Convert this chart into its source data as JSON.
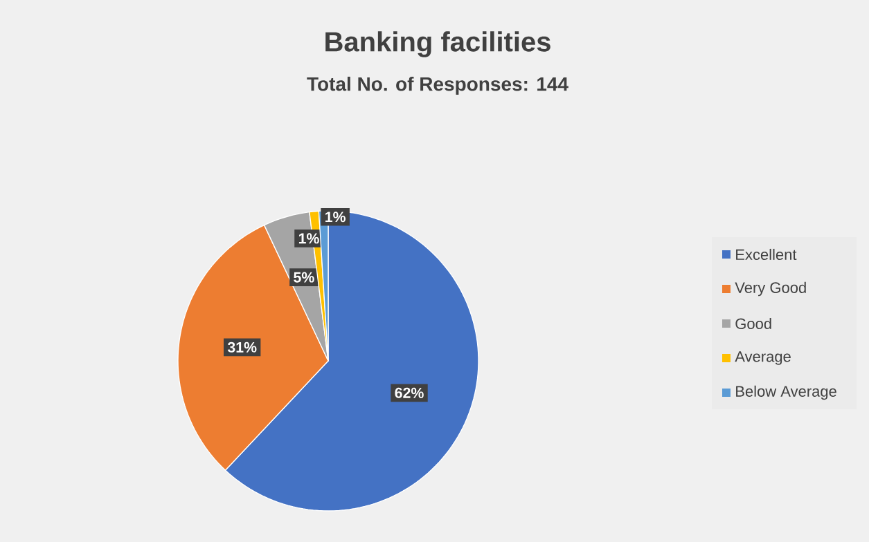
{
  "chart_data": {
    "type": "pie",
    "title": "Banking facilities",
    "subtitle": "Total No. of Responses: 144",
    "categories": [
      "Excellent",
      "Very Good",
      "Good",
      "Average",
      "Below Average"
    ],
    "values": [
      62,
      31,
      5,
      1,
      1
    ],
    "value_labels": [
      "62%",
      "31%",
      "5%",
      "1%",
      "1%"
    ],
    "colors": [
      "#4472c4",
      "#ed7d31",
      "#a5a5a5",
      "#ffc000",
      "#5b9bd5"
    ],
    "legend": "right"
  }
}
